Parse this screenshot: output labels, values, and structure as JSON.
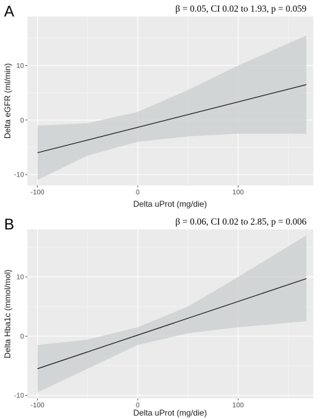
{
  "chart_data": [
    {
      "type": "line",
      "panel_label": "A",
      "title": "β = 0.05, CI 0.02 to 1.93, p = 0.059",
      "xlabel": "Delta uProt (mg/die)",
      "ylabel": "Delta eGFR (ml/min)",
      "xlim": [
        -110,
        175
      ],
      "ylim": [
        -12,
        19
      ],
      "xticks": [
        -100,
        0,
        100
      ],
      "yticks": [
        -10,
        0,
        10
      ],
      "grid": true,
      "series": [
        {
          "x": [
            -100,
            168
          ],
          "y": [
            -6.0,
            6.5
          ]
        }
      ],
      "ci_band": {
        "x": [
          -100,
          -50,
          0,
          50,
          100,
          168
        ],
        "lower": [
          -11.0,
          -6.5,
          -4.0,
          -3.0,
          -2.5,
          -2.5
        ],
        "upper": [
          -1.0,
          -0.6,
          1.5,
          5.5,
          10.0,
          15.5
        ]
      }
    },
    {
      "type": "line",
      "panel_label": "B",
      "title": "β = 0.06, CI 0.02 to 2.85, p = 0.006",
      "xlabel": "Delta uProt (mg/die)",
      "ylabel": "Delta Hba1c (mmol/mol)",
      "xlim": [
        -110,
        175
      ],
      "ylim": [
        -10.5,
        18
      ],
      "xticks": [
        -100,
        0,
        100
      ],
      "yticks": [
        -10,
        0,
        10
      ],
      "grid": true,
      "series": [
        {
          "x": [
            -100,
            168
          ],
          "y": [
            -5.5,
            9.7
          ]
        }
      ],
      "ci_band": {
        "x": [
          -100,
          -50,
          0,
          50,
          100,
          168
        ],
        "lower": [
          -9.5,
          -5.5,
          -1.5,
          0.5,
          1.5,
          2.5
        ],
        "upper": [
          -1.5,
          -0.6,
          1.5,
          5.0,
          10.0,
          17.0
        ]
      }
    }
  ]
}
